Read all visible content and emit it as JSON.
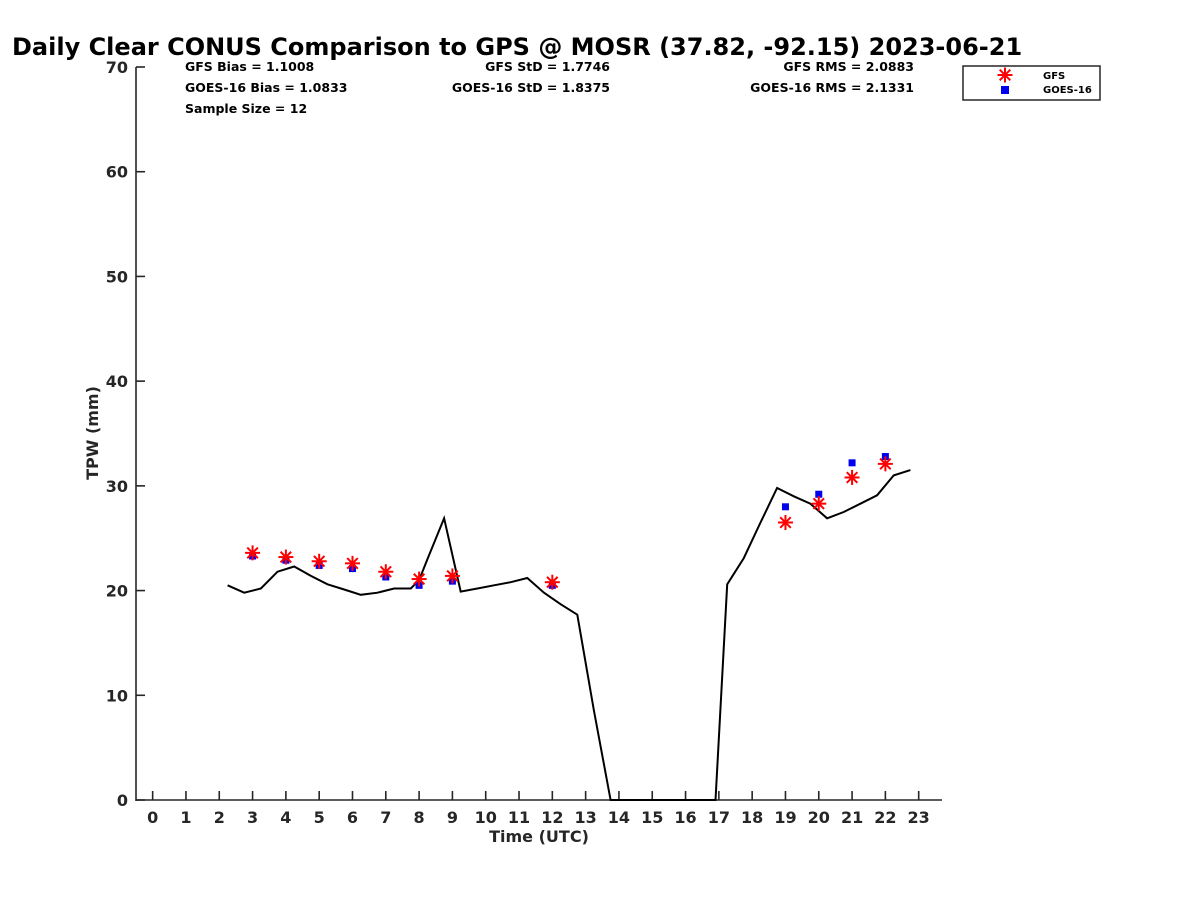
{
  "chart_data": {
    "type": "scatter",
    "title": "Daily Clear CONUS Comparison to GPS @ MOSR (37.82, -92.15) 2023-06-21",
    "xlabel": "Time (UTC)",
    "ylabel": "TPW (mm)",
    "xlim": [
      -0.5,
      23.7
    ],
    "ylim": [
      0,
      70
    ],
    "xticks": [
      0,
      1,
      2,
      3,
      4,
      5,
      6,
      7,
      8,
      9,
      10,
      11,
      12,
      13,
      14,
      15,
      16,
      17,
      18,
      19,
      20,
      21,
      22,
      23
    ],
    "yticks": [
      0,
      10,
      20,
      30,
      40,
      50,
      60,
      70
    ],
    "stats": {
      "gfs_bias": "GFS Bias = 1.1008",
      "goes_bias": "GOES-16 Bias = 1.0833",
      "sample_size": "Sample Size = 12",
      "gfs_std": "GFS StD = 1.7746",
      "goes_std": "GOES-16 StD = 1.8375",
      "gfs_rms": "GFS RMS = 2.0883",
      "goes_rms": "GOES-16 RMS = 2.1331"
    },
    "legend": {
      "position": "top-right",
      "entries": [
        "GFS",
        "GOES-16"
      ]
    },
    "series": [
      {
        "name": "GPS",
        "style": "line",
        "color": "#000000",
        "x": [
          2.25,
          2.75,
          3.25,
          3.75,
          4.25,
          4.75,
          5.25,
          5.75,
          6.25,
          6.75,
          7.25,
          7.75,
          8.0,
          8.25,
          8.75,
          9.25,
          9.75,
          10.25,
          10.75,
          11.25,
          11.75,
          12.25,
          12.75,
          13.25,
          13.75,
          16.9,
          17.25,
          17.75,
          18.25,
          18.75,
          19.25,
          19.75,
          20.25,
          20.75,
          21.25,
          21.75,
          22.25,
          22.75
        ],
        "y": [
          20.5,
          19.8,
          20.2,
          21.8,
          22.3,
          21.4,
          20.6,
          20.1,
          19.6,
          19.8,
          20.2,
          20.2,
          21.0,
          23.0,
          26.9,
          19.9,
          20.2,
          20.5,
          20.8,
          21.2,
          19.8,
          18.7,
          17.7,
          8.5,
          0,
          0,
          20.6,
          23.1,
          26.5,
          29.8,
          29.0,
          28.3,
          26.9,
          27.5,
          28.3,
          29.1,
          31.0,
          31.5
        ]
      },
      {
        "name": "GFS",
        "style": "asterisk",
        "color": "#ff0000",
        "x": [
          3,
          4,
          5,
          6,
          7,
          8,
          9,
          12,
          19,
          20,
          21,
          22
        ],
        "y": [
          23.6,
          23.2,
          22.8,
          22.6,
          21.8,
          21.1,
          21.4,
          20.8,
          26.5,
          28.3,
          30.8,
          32.1
        ]
      },
      {
        "name": "GOES-16",
        "style": "square",
        "color": "#0000ee",
        "x": [
          3,
          4,
          5,
          6,
          7,
          8,
          9,
          12,
          19,
          20,
          21,
          22
        ],
        "y": [
          23.3,
          22.9,
          22.4,
          22.1,
          21.3,
          20.5,
          20.9,
          20.5,
          28.0,
          29.2,
          32.2,
          32.8
        ]
      }
    ]
  }
}
